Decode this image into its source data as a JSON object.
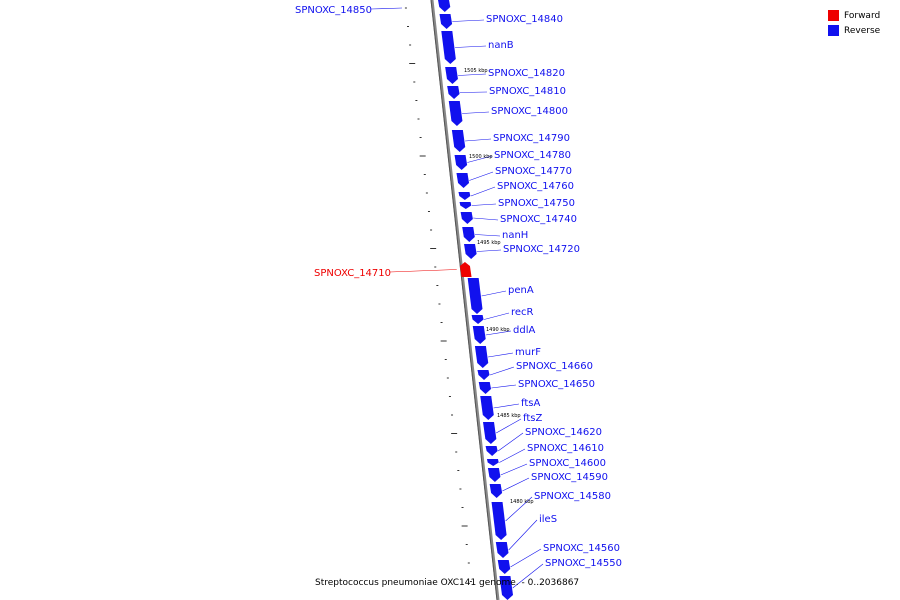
{
  "legend": {
    "forward": {
      "label": "Forward",
      "color": "#ee0000"
    },
    "reverse": {
      "label": "Reverse",
      "color": "#1111ee"
    }
  },
  "caption": "Streptococcus pneumoniae OXC141 genome. - 0..2036867",
  "kbp_labels": [
    "1505 kbp",
    "1500 kbp",
    "1495 kbp",
    "1490 kbp",
    "1485 kbp",
    "1480 kbp"
  ],
  "genes": [
    {
      "name": "SPNOXC_14850",
      "strand": "reverse"
    },
    {
      "name": "SPNOXC_14840",
      "strand": "reverse"
    },
    {
      "name": "nanB",
      "strand": "reverse"
    },
    {
      "name": "SPNOXC_14820",
      "strand": "reverse"
    },
    {
      "name": "SPNOXC_14810",
      "strand": "reverse"
    },
    {
      "name": "SPNOXC_14800",
      "strand": "reverse"
    },
    {
      "name": "SPNOXC_14790",
      "strand": "reverse"
    },
    {
      "name": "SPNOXC_14780",
      "strand": "reverse"
    },
    {
      "name": "SPNOXC_14770",
      "strand": "reverse"
    },
    {
      "name": "SPNOXC_14760",
      "strand": "reverse"
    },
    {
      "name": "SPNOXC_14750",
      "strand": "reverse"
    },
    {
      "name": "SPNOXC_14740",
      "strand": "reverse"
    },
    {
      "name": "nanH",
      "strand": "reverse"
    },
    {
      "name": "SPNOXC_14720",
      "strand": "reverse"
    },
    {
      "name": "SPNOXC_14710",
      "strand": "forward"
    },
    {
      "name": "penA",
      "strand": "reverse"
    },
    {
      "name": "recR",
      "strand": "reverse"
    },
    {
      "name": "ddlA",
      "strand": "reverse"
    },
    {
      "name": "murF",
      "strand": "reverse"
    },
    {
      "name": "SPNOXC_14660",
      "strand": "reverse"
    },
    {
      "name": "SPNOXC_14650",
      "strand": "reverse"
    },
    {
      "name": "ftsA",
      "strand": "reverse"
    },
    {
      "name": "ftsZ",
      "strand": "reverse"
    },
    {
      "name": "SPNOXC_14620",
      "strand": "reverse"
    },
    {
      "name": "SPNOXC_14610",
      "strand": "reverse"
    },
    {
      "name": "SPNOXC_14600",
      "strand": "reverse"
    },
    {
      "name": "SPNOXC_14590",
      "strand": "reverse"
    },
    {
      "name": "SPNOXC_14580",
      "strand": "reverse"
    },
    {
      "name": "ileS",
      "strand": "reverse"
    },
    {
      "name": "SPNOXC_14560",
      "strand": "reverse"
    },
    {
      "name": "SPNOXC_14550",
      "strand": "reverse"
    }
  ]
}
